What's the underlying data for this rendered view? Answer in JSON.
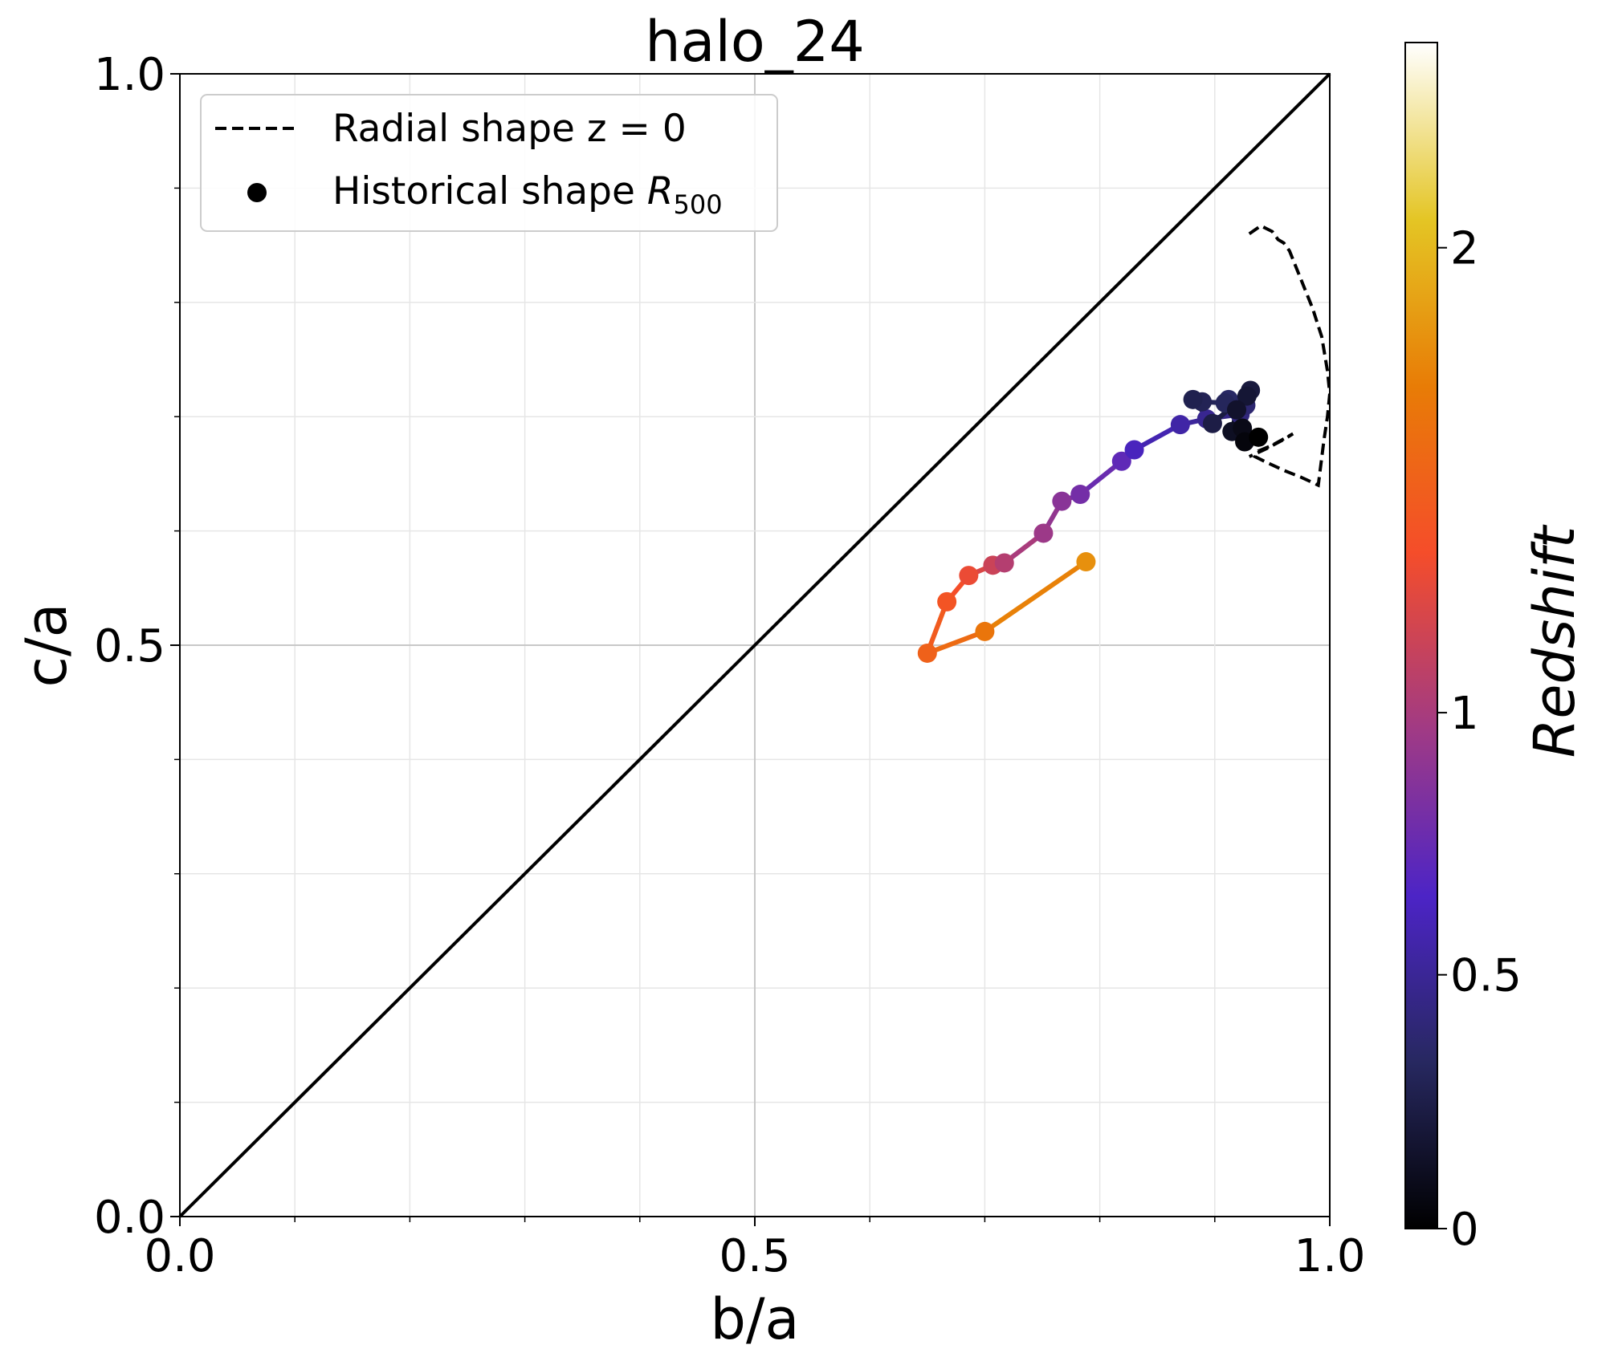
{
  "chart_data": {
    "type": "scatter",
    "title": "halo_24",
    "xlabel": "b/a",
    "ylabel": "c/a",
    "xlim": [
      0.0,
      1.0
    ],
    "ylim": [
      0.0,
      1.0
    ],
    "xticks": [
      0.0,
      0.5,
      1.0
    ],
    "yticks": [
      0.0,
      0.5,
      1.0
    ],
    "xtick_labels": [
      "0.0",
      "0.5",
      "1.0"
    ],
    "ytick_labels": [
      "0.0",
      "0.5",
      "1.0"
    ],
    "grid": true,
    "legend": {
      "position": "upper-left",
      "entries": [
        {
          "label": "Radial shape z = 0",
          "marker": "dashed-line"
        },
        {
          "label_main": "Historical shape ",
          "label_math": "R",
          "label_sub": "500",
          "marker": "circle"
        }
      ]
    },
    "reference_line": {
      "name": "1:1",
      "x": [
        0.0,
        1.0
      ],
      "y": [
        0.0,
        1.0
      ]
    },
    "series": [
      {
        "x": [
          0.788,
          0.7,
          0.65,
          0.667,
          0.686,
          0.707,
          0.717,
          0.751,
          0.767,
          0.783,
          0.819,
          0.83,
          0.87,
          0.893,
          0.922,
          0.927,
          0.912,
          0.909,
          0.889,
          0.881,
          0.898,
          0.931,
          0.928,
          0.919,
          0.915,
          0.924,
          0.926,
          0.938
        ],
        "y": [
          0.573,
          0.512,
          0.493,
          0.538,
          0.561,
          0.57,
          0.572,
          0.598,
          0.626,
          0.632,
          0.661,
          0.671,
          0.693,
          0.698,
          0.702,
          0.71,
          0.715,
          0.712,
          0.713,
          0.715,
          0.694,
          0.723,
          0.718,
          0.706,
          0.687,
          0.69,
          0.678,
          0.682
        ],
        "redshift": [
          1.8,
          1.65,
          1.5,
          1.4,
          1.3,
          1.15,
          1.05,
          0.95,
          0.88,
          0.8,
          0.72,
          0.62,
          0.55,
          0.48,
          0.42,
          0.38,
          0.34,
          0.31,
          0.29,
          0.27,
          0.24,
          0.21,
          0.18,
          0.15,
          0.12,
          0.08,
          0.04,
          0.0
        ]
      }
    ],
    "radial_shape_z0": {
      "x": [
        0.93,
        0.94,
        0.95,
        0.955,
        0.96,
        0.965,
        0.975,
        0.985,
        0.993,
        0.998,
        1.0,
        0.998,
        0.995,
        0.99,
        0.975,
        0.96,
        0.945,
        0.935,
        0.938,
        0.95,
        0.968,
        0.96,
        0.945,
        0.93
      ],
      "y": [
        0.86,
        0.867,
        0.862,
        0.855,
        0.852,
        0.845,
        0.82,
        0.795,
        0.77,
        0.74,
        0.72,
        0.7,
        0.68,
        0.64,
        0.647,
        0.653,
        0.66,
        0.665,
        0.67,
        0.675,
        0.685,
        0.68,
        0.672,
        0.665
      ]
    },
    "colorbar": {
      "label": "Redshift",
      "ticks": [
        0,
        0.5,
        1,
        2
      ],
      "tick_labels": [
        "0",
        "0.5",
        "1",
        "2"
      ],
      "max": 2.6,
      "colormap": "CMRmap",
      "stops": [
        {
          "t": 0.0,
          "color": "#000000"
        },
        {
          "t": 0.14,
          "color": "#272860"
        },
        {
          "t": 0.28,
          "color": "#4c24c6"
        },
        {
          "t": 0.42,
          "color": "#a03a85"
        },
        {
          "t": 0.57,
          "color": "#f54d2a"
        },
        {
          "t": 0.71,
          "color": "#e87c06"
        },
        {
          "t": 0.85,
          "color": "#e4c524"
        },
        {
          "t": 1.0,
          "color": "#ffffff"
        }
      ]
    }
  }
}
